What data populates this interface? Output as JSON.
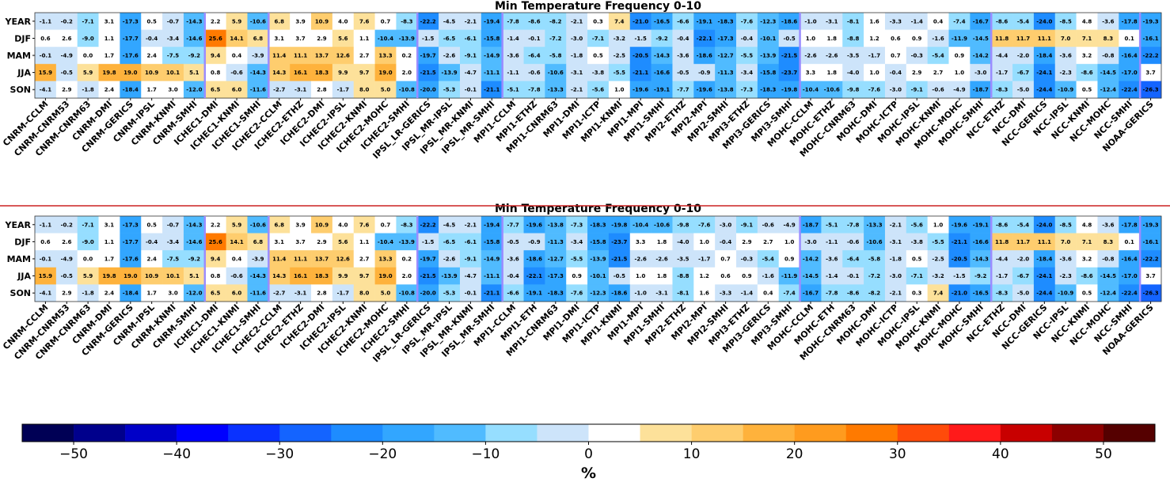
{
  "chart_data": [
    {
      "type": "heatmap",
      "title": "Min Temperature Frequency 0-10",
      "rows": [
        "YEAR",
        "DJF",
        "MAM",
        "JJA",
        "SON"
      ],
      "columns": [
        "CNRM-CCLM",
        "CNRM-CNRM53",
        "CNRM-CNRM63",
        "CNRM-DMI",
        "CNRM-GERICS",
        "CNRM-IPSL",
        "CNRM-KNMI",
        "CNRM-SMHI",
        "ICHEC1-DMI",
        "ICHEC1-KNMI",
        "ICHEC1-SMHI",
        "ICHEC2-CCLM",
        "ICHEC2-ETHZ",
        "ICHEC2-DMI",
        "ICHEC2-IPSL",
        "ICHEC2-KNMI",
        "ICHEC2-MOHC",
        "ICHEC2-SMHI",
        "IPSL_LR-GERICS",
        "IPSL_MR-IPSL",
        "IPSL_MR-KNMI",
        "IPSL_MR-SMHI",
        "MPI1-CCLM",
        "MPI1-ETHZ",
        "MPI1-CNRM63",
        "MPI1-DMI",
        "MPI1-ICTP",
        "MPI1-KNMI",
        "MPI1-MPI",
        "MPI1-SMHI",
        "MPI2-ETHZ",
        "MPI2-MPI",
        "MPI2-SMHI",
        "MPI3-ETHZ",
        "MPI3-GERICS",
        "MPI3-SMHI",
        "MOHC-CCLM",
        "MOHC-ETHZ",
        "MOHC-CNRM63",
        "MOHC-DMI",
        "MOHC-ICTP",
        "MOHC-IPSL",
        "MOHC-KNMI",
        "MOHC-MOHC",
        "MOHC-SMHI",
        "NCC-ETHZ",
        "NCC-DMI",
        "NCC-GERICS",
        "NCC-IPSL",
        "NCC-KNMI",
        "NCC-MOHC",
        "NCC-SMHI",
        "NOAA-GERICS"
      ],
      "values": [
        [
          -1.1,
          -0.2,
          -7.1,
          3.1,
          -17.3,
          0.5,
          -0.7,
          -14.3,
          2.2,
          5.9,
          -10.6,
          6.8,
          3.9,
          10.9,
          4.0,
          7.6,
          0.7,
          -8.3,
          -22.2,
          -4.5,
          -2.1,
          -19.4,
          -7.8,
          -8.6,
          -8.2,
          -2.1,
          0.3,
          7.4,
          -21.0,
          -16.5,
          -6.6,
          -19.1,
          -18.3,
          -7.6,
          -12.3,
          -18.6,
          -1.0,
          -3.1,
          -8.1,
          1.6,
          -3.3,
          -1.4,
          0.4,
          -7.4,
          -16.7,
          -8.6,
          -5.4,
          -24.0,
          -8.5,
          4.8,
          -3.6,
          -17.8,
          -19.3
        ],
        [
          0.6,
          2.6,
          -9.0,
          1.1,
          -17.7,
          -0.4,
          -3.4,
          -14.6,
          25.6,
          14.1,
          6.8,
          3.1,
          3.7,
          2.9,
          5.6,
          1.1,
          -10.4,
          -13.9,
          -1.5,
          -6.5,
          -6.1,
          -15.8,
          -1.4,
          -0.1,
          -7.2,
          -3.0,
          -7.1,
          -3.2,
          -1.5,
          -9.2,
          -0.4,
          -22.1,
          -17.3,
          -0.4,
          -10.1,
          -0.5,
          1.0,
          1.8,
          -8.8,
          1.2,
          0.6,
          0.9,
          -1.6,
          -11.9,
          -14.5,
          11.8,
          11.7,
          11.1,
          7.0,
          7.1,
          8.3,
          0.1,
          -16.1
        ],
        [
          -0.1,
          -4.9,
          -0.0,
          1.7,
          -17.6,
          2.4,
          -7.5,
          -9.2,
          9.4,
          0.4,
          -3.9,
          11.4,
          11.1,
          13.7,
          12.6,
          2.7,
          13.3,
          0.2,
          -19.7,
          -2.6,
          -9.1,
          -14.9,
          -3.6,
          -6.4,
          -5.8,
          -1.8,
          0.5,
          -2.5,
          -20.5,
          -14.3,
          -3.6,
          -18.6,
          -12.7,
          -5.5,
          -13.9,
          -21.5,
          -2.6,
          -2.6,
          -3.5,
          -1.7,
          0.7,
          -0.3,
          -5.4,
          0.9,
          -14.2,
          -4.4,
          -2.0,
          -18.4,
          -3.6,
          3.2,
          -0.8,
          -16.4,
          -22.2
        ],
        [
          15.9,
          -0.5,
          5.9,
          19.8,
          19.0,
          10.9,
          10.1,
          5.1,
          0.8,
          -0.6,
          -14.3,
          14.3,
          16.1,
          18.3,
          9.9,
          9.7,
          19.0,
          2.0,
          -21.5,
          -13.9,
          -4.7,
          -11.1,
          -1.1,
          -0.6,
          -10.6,
          -3.1,
          -3.8,
          -5.5,
          -21.1,
          -16.6,
          -0.5,
          -0.9,
          -11.3,
          -3.4,
          -15.8,
          -23.7,
          3.3,
          1.8,
          -4.0,
          1.0,
          -0.4,
          2.9,
          2.7,
          1.0,
          -3.0,
          -1.7,
          -6.7,
          -24.1,
          -2.3,
          -8.6,
          -14.5,
          -17.0,
          3.7
        ],
        [
          -4.1,
          2.9,
          -1.8,
          2.4,
          -18.4,
          1.7,
          3.0,
          -12.0,
          6.5,
          6.0,
          -11.6,
          -2.7,
          -3.1,
          2.8,
          -1.7,
          8.0,
          5.0,
          -10.8,
          -20.0,
          -5.3,
          -0.1,
          -21.1,
          -5.1,
          -7.8,
          -13.3,
          -2.1,
          -5.6,
          1.0,
          -19.6,
          -19.1,
          -7.7,
          -19.6,
          -13.8,
          -7.3,
          -18.3,
          -19.8,
          -10.4,
          -10.6,
          -9.8,
          -7.6,
          -3.0,
          -9.1,
          -0.6,
          -4.9,
          -18.7,
          -8.3,
          -5.0,
          -24.4,
          -10.9,
          0.5,
          -12.4,
          -22.4,
          -26.3
        ]
      ]
    },
    {
      "type": "heatmap",
      "title": "Min Temperature Frequency 0-10",
      "rows": [
        "YEAR",
        "DJF",
        "MAM",
        "JJA",
        "SON"
      ],
      "columns": [
        "CNRM-CCLM",
        "CNRM-CNRM53",
        "CNRM-CNRM63",
        "CNRM-DMI",
        "CNRM-GERICS",
        "CNRM-IPSL",
        "CNRM-KNMI",
        "CNRM-SMHI",
        "ICHEC1-DMI",
        "ICHEC1-KNMI",
        "ICHEC1-SMHI",
        "ICHEC2-CCLM",
        "ICHEC2-ETHZ",
        "ICHEC2-DMI",
        "ICHEC2-IPSL",
        "ICHEC2-KNMI",
        "ICHEC2-MOHC",
        "ICHEC2-SMHI",
        "IPSL_LR-GERICS",
        "IPSL_MR-IPSL",
        "IPSL_MR-KNMI",
        "IPSL_MR-SMHI",
        "MPI1-CCLM",
        "MPI1-ETH",
        "MPI1-CNRM63",
        "MPI1-DMI",
        "MPI1-ICTP",
        "MPI1-KNMI",
        "MPI1-MPI",
        "MPI1-SMHI",
        "MPI2-ETHZ",
        "MPI2-MPI",
        "MPI2-SMHI",
        "MPI3-ETHZ",
        "MPI3-GERICS",
        "MPI3-SMHI",
        "MOHC-CCLM",
        "MOHC-ETH",
        "MOHC-CNRM63",
        "MOHC-DMI",
        "MOHC-ICTP",
        "MOHC-IPSL",
        "MOHC-KNMI",
        "MOHC-MOHC",
        "MOHC-SMHI",
        "NCC-ETHZ",
        "NCC-DMI",
        "NCC-GERICS",
        "NCC-IPSL",
        "NCC-KNMI",
        "NCC-MOHC",
        "NCC-SMHI",
        "NOAA-GERICS"
      ],
      "values": [
        [
          -1.1,
          -0.2,
          -7.1,
          3.1,
          -17.3,
          0.5,
          -0.7,
          -14.3,
          2.2,
          5.9,
          -10.6,
          6.8,
          3.9,
          10.9,
          4.0,
          7.6,
          0.7,
          -8.3,
          -22.2,
          -4.5,
          -2.1,
          -19.4,
          -7.7,
          -19.6,
          -13.8,
          -7.3,
          -18.3,
          -19.8,
          -10.4,
          -10.6,
          -9.8,
          -7.6,
          -3.0,
          -9.1,
          -0.6,
          -4.9,
          -18.7,
          -5.1,
          -7.8,
          -13.3,
          -2.1,
          -5.6,
          1.0,
          -19.6,
          -19.1,
          -8.6,
          -5.4,
          -24.0,
          -8.5,
          4.8,
          -3.6,
          -17.8,
          -19.3
        ],
        [
          0.6,
          2.6,
          -9.0,
          1.1,
          -17.7,
          -0.4,
          -3.4,
          -14.6,
          25.6,
          14.1,
          6.8,
          3.1,
          3.7,
          2.9,
          5.6,
          1.1,
          -10.4,
          -13.9,
          -1.5,
          -6.5,
          -6.1,
          -15.8,
          -0.5,
          -0.9,
          -11.3,
          -3.4,
          -15.8,
          -23.7,
          3.3,
          1.8,
          -4.0,
          1.0,
          -0.4,
          2.9,
          2.7,
          1.0,
          -3.0,
          -1.1,
          -0.6,
          -10.6,
          -3.1,
          -3.8,
          -5.5,
          -21.1,
          -16.6,
          11.8,
          11.7,
          11.1,
          7.0,
          7.1,
          8.3,
          0.1,
          -16.1
        ],
        [
          -0.1,
          -4.9,
          -0.0,
          1.7,
          -17.6,
          2.4,
          -7.5,
          -9.2,
          9.4,
          0.4,
          -3.9,
          11.4,
          11.1,
          13.7,
          12.6,
          2.7,
          13.3,
          0.2,
          -19.7,
          -2.6,
          -9.1,
          -14.9,
          -3.6,
          -18.6,
          -12.7,
          -5.5,
          -13.9,
          -21.5,
          -2.6,
          -2.6,
          -3.5,
          -1.7,
          0.7,
          -0.3,
          -5.4,
          0.9,
          -14.2,
          -3.6,
          -6.4,
          -5.8,
          -1.8,
          0.5,
          -2.5,
          -20.5,
          -14.3,
          -4.4,
          -2.0,
          -18.4,
          -3.6,
          3.2,
          -0.8,
          -16.4,
          -22.2
        ],
        [
          15.9,
          -0.5,
          5.9,
          19.8,
          19.0,
          10.9,
          10.1,
          5.1,
          0.8,
          -0.6,
          -14.3,
          14.3,
          16.1,
          18.3,
          9.9,
          9.7,
          19.0,
          2.0,
          -21.5,
          -13.9,
          -4.7,
          -11.1,
          -0.4,
          -22.1,
          -17.3,
          0.9,
          -10.1,
          -0.5,
          1.0,
          1.8,
          -8.8,
          1.2,
          0.6,
          0.9,
          -1.6,
          -11.9,
          -14.5,
          -1.4,
          -0.1,
          -7.2,
          -3.0,
          -7.1,
          -3.2,
          -1.5,
          -9.2,
          -1.7,
          -6.7,
          -24.1,
          -2.3,
          -8.6,
          -14.5,
          -17.0,
          3.7
        ],
        [
          -4.1,
          2.9,
          -1.8,
          2.4,
          -18.4,
          1.7,
          3.0,
          -12.0,
          6.5,
          6.0,
          -11.6,
          -2.7,
          -3.1,
          2.8,
          -1.7,
          8.0,
          5.0,
          -10.8,
          -20.0,
          -5.3,
          -0.1,
          -21.1,
          -6.6,
          -19.1,
          -18.3,
          -7.6,
          -12.3,
          -18.6,
          -1.0,
          -3.1,
          -8.1,
          1.6,
          -3.3,
          -1.4,
          0.4,
          -7.4,
          -16.7,
          -7.8,
          -8.6,
          -8.2,
          -2.1,
          0.3,
          7.4,
          -21.0,
          -16.5,
          -8.3,
          -5.0,
          -24.4,
          -10.9,
          0.5,
          -12.4,
          -22.4,
          -26.3
        ]
      ]
    }
  ],
  "colorbar": {
    "boundaries": [
      -55,
      -50,
      -45,
      -40,
      -35,
      -30,
      -25,
      -20,
      -15,
      -10,
      -5,
      0,
      5,
      10,
      15,
      20,
      25,
      30,
      35,
      40,
      45,
      50,
      55
    ],
    "colors": [
      "#000055",
      "#00008c",
      "#0000c8",
      "#0000ff",
      "#0a32ff",
      "#1464ff",
      "#1e8cff",
      "#32a6ff",
      "#50bbff",
      "#96deff",
      "#cde4fa",
      "#ffffff",
      "#fde19a",
      "#fecd6e",
      "#feb23c",
      "#ff9b1e",
      "#ff7a00",
      "#ff4b0a",
      "#ff1a1a",
      "#c80000",
      "#8c0000",
      "#550000"
    ],
    "ticks": [
      -50,
      -40,
      -30,
      -20,
      -10,
      0,
      10,
      20,
      30,
      40,
      50
    ],
    "label": "%"
  },
  "colors": {
    "separator_line": "#cc2222",
    "group_divider": "#9a8cff"
  }
}
